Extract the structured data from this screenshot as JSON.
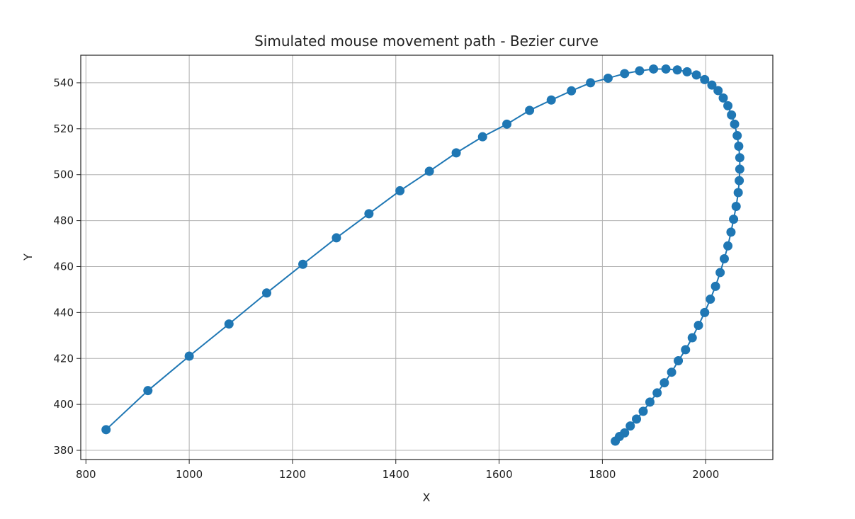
{
  "chart_data": {
    "type": "line",
    "title": "Simulated mouse movement path - Bezier curve",
    "xlabel": "X",
    "ylabel": "Y",
    "xlim": [
      790,
      2130
    ],
    "ylim": [
      376,
      552
    ],
    "xticks": [
      800,
      1000,
      1200,
      1400,
      1600,
      1800,
      2000
    ],
    "yticks": [
      380,
      400,
      420,
      440,
      460,
      480,
      500,
      520,
      540
    ],
    "grid": true,
    "legend": "none",
    "color": "#1f77b4",
    "markers": true,
    "series": [
      {
        "points": [
          [
            839,
            389
          ],
          [
            920,
            406
          ],
          [
            1000,
            421
          ],
          [
            1077,
            435
          ],
          [
            1150,
            448.5
          ],
          [
            1220,
            461
          ],
          [
            1285,
            472.5
          ],
          [
            1348,
            483
          ],
          [
            1408,
            493
          ],
          [
            1465,
            501.5
          ],
          [
            1517,
            509.5
          ],
          [
            1568,
            516.5
          ],
          [
            1615,
            522
          ],
          [
            1659,
            528
          ],
          [
            1701,
            532.5
          ],
          [
            1740,
            536.5
          ],
          [
            1777,
            540
          ],
          [
            1811,
            542
          ],
          [
            1843,
            544
          ],
          [
            1872,
            545.2
          ],
          [
            1899,
            546
          ],
          [
            1923,
            546
          ],
          [
            1945,
            545.6
          ],
          [
            1964,
            544.8
          ],
          [
            1982,
            543.4
          ],
          [
            1998,
            541.4
          ],
          [
            2012,
            539
          ],
          [
            2024,
            536.6
          ],
          [
            2034,
            533.4
          ],
          [
            2043,
            530
          ],
          [
            2050,
            526
          ],
          [
            2056,
            522
          ],
          [
            2061,
            517
          ],
          [
            2064,
            512.4
          ],
          [
            2066,
            507.4
          ],
          [
            2066,
            502.4
          ],
          [
            2065,
            497.4
          ],
          [
            2063,
            492.2
          ],
          [
            2059,
            486.2
          ],
          [
            2054,
            480.6
          ],
          [
            2049,
            475
          ],
          [
            2043,
            469
          ],
          [
            2036,
            463.4
          ],
          [
            2028,
            457.4
          ],
          [
            2019,
            451.4
          ],
          [
            2009,
            445.8
          ],
          [
            1998,
            440
          ],
          [
            1986,
            434.4
          ],
          [
            1974,
            429
          ],
          [
            1961,
            423.8
          ],
          [
            1947,
            419
          ],
          [
            1934,
            414
          ],
          [
            1920,
            409.4
          ],
          [
            1906,
            405
          ],
          [
            1892,
            401
          ],
          [
            1879,
            397
          ],
          [
            1866,
            393.6
          ],
          [
            1854,
            390.6
          ],
          [
            1843,
            387.6
          ],
          [
            1833,
            386
          ],
          [
            1825,
            384
          ]
        ]
      }
    ]
  }
}
